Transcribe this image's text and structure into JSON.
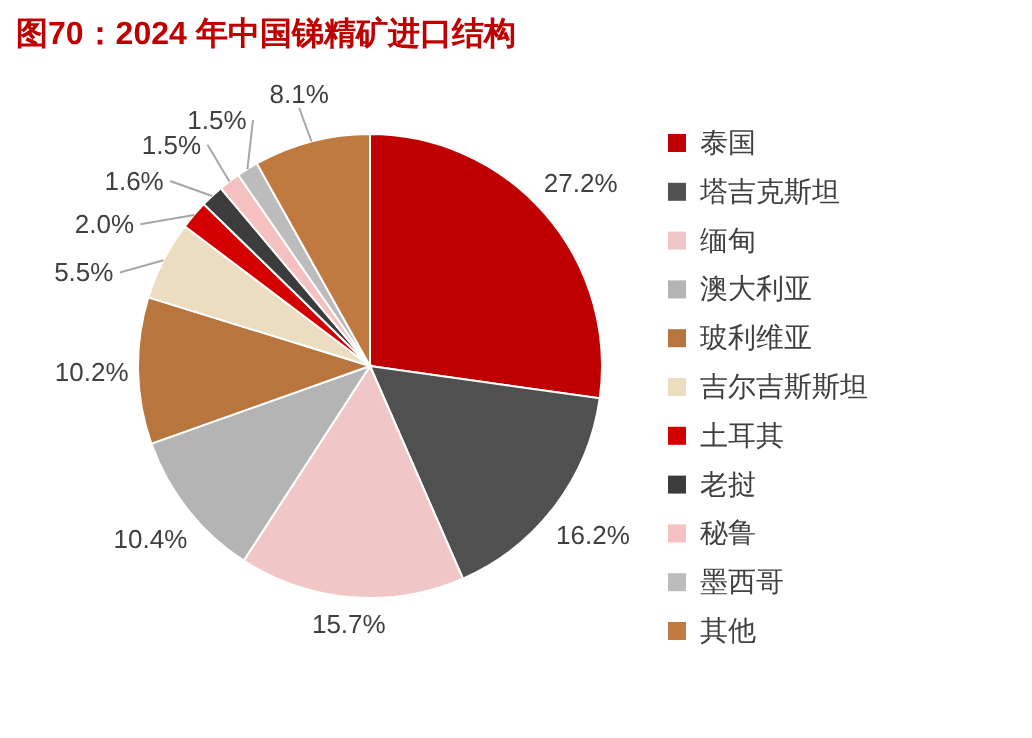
{
  "chart_data": {
    "type": "pie",
    "title": "图70：2024 年中国锑精矿进口结构",
    "categories": [
      "泰国",
      "塔吉克斯坦",
      "缅甸",
      "澳大利亚",
      "玻利维亚",
      "吉尔吉斯斯坦",
      "土耳其",
      "老挝",
      "秘鲁",
      "墨西哥",
      "其他"
    ],
    "values": [
      27.2,
      16.2,
      15.7,
      10.4,
      10.2,
      5.5,
      2.0,
      1.6,
      1.5,
      1.5,
      8.1
    ],
    "colors": [
      "#c00000",
      "#505050",
      "#f0c6c6",
      "#b4b4b4",
      "#b8763e",
      "#ecdcc0",
      "#d40000",
      "#3c3c3c",
      "#f4c0c0",
      "#bcbcbc",
      "#c07a40"
    ],
    "value_labels": [
      "27.2%",
      "16.2%",
      "15.7%",
      "10.4%",
      "10.2%",
      "5.5%",
      "2.0%",
      "1.6%",
      "1.5%",
      "1.5%",
      "8.1%"
    ],
    "legend": "right"
  }
}
